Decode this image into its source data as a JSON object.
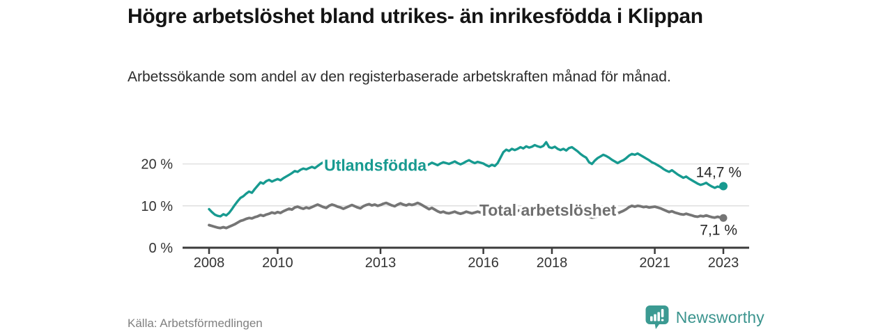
{
  "header": {
    "title": "Högre arbetslöshet bland utrikes- än inrikesfödda i Klippan",
    "subtitle": "Arbetssökande som andel av den registerbaserade arbetskraften månad för månad."
  },
  "footer": {
    "source": "Källa: Arbetsförmedlingen",
    "brand": "Newsworthy",
    "brand_color": "#3b948e"
  },
  "chart_data": {
    "type": "line",
    "title": "Högre arbetslöshet bland utrikes- än inrikesfödda i Klippan",
    "subtitle": "Arbetssökande som andel av den registerbaserade arbetskraften månad för månad",
    "x_unit": "monthly",
    "x_domain": [
      2008,
      2023.0
    ],
    "ylim": [
      0,
      27
    ],
    "grid": "horizontal-only",
    "legend_position": "inline-labels",
    "colors": {
      "axis": "#3c3c3c",
      "grid": "#dcdcdc",
      "tick_text": "#333333",
      "value_text": "#262626"
    },
    "y_ticks": [
      {
        "value": 0,
        "label": "0 %"
      },
      {
        "value": 10,
        "label": "10 %"
      },
      {
        "value": 20,
        "label": "20 %"
      }
    ],
    "x_ticks": [
      {
        "year": 2008,
        "label": "2008"
      },
      {
        "year": 2010,
        "label": "2010"
      },
      {
        "year": 2013,
        "label": "2013"
      },
      {
        "year": 2016,
        "label": "2016"
      },
      {
        "year": 2018,
        "label": "2018"
      },
      {
        "year": 2021,
        "label": "2021"
      },
      {
        "year": 2023,
        "label": "2023"
      }
    ],
    "series": [
      {
        "name": "Total arbetslöshet",
        "color": "#757575",
        "label_color": "#6f6f6f",
        "line_width": 3.8,
        "dot_radius": 5.5,
        "end_label": "7,1 %",
        "end_value": 7.1,
        "end_label_offset": [
          20,
          24
        ],
        "label_at": {
          "year": 2017.88,
          "value": 9.0
        },
        "values": [
          5.4,
          5.2,
          5.0,
          4.8,
          4.7,
          4.9,
          4.7,
          5.0,
          5.3,
          5.6,
          6.0,
          6.4,
          6.6,
          6.9,
          7.1,
          7.0,
          7.3,
          7.5,
          7.8,
          7.6,
          7.9,
          8.1,
          8.4,
          8.2,
          8.5,
          8.3,
          8.7,
          9.0,
          9.3,
          9.1,
          9.6,
          9.8,
          9.5,
          9.3,
          9.6,
          9.4,
          9.7,
          10.0,
          10.3,
          10.0,
          9.7,
          9.5,
          10.0,
          10.3,
          10.1,
          9.8,
          9.6,
          9.3,
          9.6,
          9.9,
          10.2,
          9.9,
          9.6,
          9.4,
          9.9,
          10.2,
          10.4,
          10.1,
          10.3,
          10.0,
          10.2,
          10.5,
          10.7,
          10.4,
          10.1,
          9.9,
          10.3,
          10.6,
          10.3,
          10.1,
          10.4,
          10.2,
          10.4,
          10.7,
          10.4,
          10.0,
          9.6,
          9.2,
          9.5,
          9.1,
          8.7,
          8.4,
          8.6,
          8.3,
          8.2,
          8.4,
          8.6,
          8.3,
          8.1,
          8.3,
          8.6,
          8.4,
          8.2,
          8.4,
          8.6,
          8.4,
          8.2,
          8.1,
          8.3,
          8.5,
          8.3,
          8.5,
          8.8,
          8.6,
          8.4,
          8.6,
          8.8,
          8.6,
          8.8,
          9.0,
          8.8,
          8.6,
          8.8,
          9.1,
          9.3,
          9.0,
          8.8,
          9.0,
          9.2,
          8.9,
          8.7,
          8.5,
          8.3,
          8.1,
          7.9,
          8.1,
          8.4,
          8.2,
          8.0,
          7.8,
          7.6,
          7.8,
          7.6,
          7.4,
          7.2,
          7.3,
          7.5,
          7.7,
          8.0,
          7.8,
          7.6,
          7.8,
          8.0,
          8.2,
          8.5,
          8.8,
          9.2,
          9.7,
          10.0,
          9.8,
          10.0,
          9.9,
          9.7,
          9.8,
          9.6,
          9.7,
          9.8,
          9.6,
          9.4,
          9.1,
          8.8,
          8.5,
          8.7,
          8.4,
          8.2,
          8.0,
          7.9,
          8.1,
          7.9,
          7.7,
          7.5,
          7.4,
          7.6,
          7.5,
          7.7,
          7.5,
          7.3,
          7.2,
          7.4,
          7.2,
          7.1
        ]
      },
      {
        "name": "Utlandsfödda",
        "color": "#179a90",
        "label_color": "#179a90",
        "line_width": 3.4,
        "dot_radius": 6,
        "end_label": "14,7 %",
        "end_value": 14.7,
        "end_label_offset": [
          26,
          -13
        ],
        "label_at": {
          "year": 2012.85,
          "value": 19.7
        },
        "values": [
          9.2,
          8.5,
          7.9,
          7.6,
          7.5,
          8.0,
          7.7,
          8.3,
          9.2,
          10.2,
          11.1,
          11.9,
          12.3,
          12.9,
          13.4,
          13.1,
          14.0,
          14.8,
          15.6,
          15.3,
          15.9,
          16.2,
          15.8,
          16.1,
          16.4,
          16.1,
          16.6,
          17.0,
          17.4,
          17.8,
          18.3,
          18.1,
          18.6,
          18.9,
          18.7,
          19.0,
          19.3,
          19.0,
          19.5,
          20.0,
          20.4,
          20.2,
          20.6,
          20.4,
          20.1,
          19.8,
          19.4,
          19.0,
          18.7,
          18.5,
          18.9,
          19.2,
          19.0,
          18.8,
          19.3,
          19.6,
          19.3,
          19.1,
          19.5,
          19.2,
          19.0,
          19.3,
          18.9,
          19.2,
          19.5,
          19.3,
          19.8,
          19.5,
          19.7,
          20.0,
          19.6,
          19.9,
          20.1,
          19.8,
          20.2,
          19.9,
          19.6,
          19.9,
          20.3,
          20.0,
          19.7,
          20.1,
          20.4,
          20.2,
          20.0,
          20.3,
          20.6,
          20.2,
          19.9,
          20.2,
          20.6,
          20.9,
          20.5,
          20.2,
          20.5,
          20.3,
          20.1,
          19.7,
          19.4,
          19.8,
          19.5,
          20.2,
          21.5,
          22.8,
          23.4,
          23.1,
          23.6,
          23.3,
          23.6,
          24.0,
          23.7,
          24.2,
          23.9,
          24.1,
          24.5,
          24.2,
          24.0,
          24.3,
          25.2,
          24.0,
          23.8,
          24.1,
          23.6,
          23.3,
          23.6,
          23.2,
          23.8,
          24.0,
          23.5,
          23.0,
          22.4,
          21.9,
          21.5,
          20.4,
          20.0,
          20.8,
          21.4,
          21.8,
          22.2,
          21.9,
          21.5,
          21.0,
          20.6,
          20.2,
          20.6,
          20.9,
          21.4,
          22.0,
          22.4,
          22.2,
          22.5,
          22.1,
          21.7,
          21.3,
          20.9,
          20.4,
          20.1,
          19.7,
          19.3,
          18.8,
          18.4,
          18.1,
          18.5,
          18.0,
          17.5,
          17.1,
          16.7,
          17.0,
          16.5,
          16.1,
          15.7,
          15.3,
          15.0,
          15.2,
          15.5,
          15.0,
          14.6,
          14.3,
          14.6,
          14.4,
          14.7
        ]
      }
    ]
  }
}
